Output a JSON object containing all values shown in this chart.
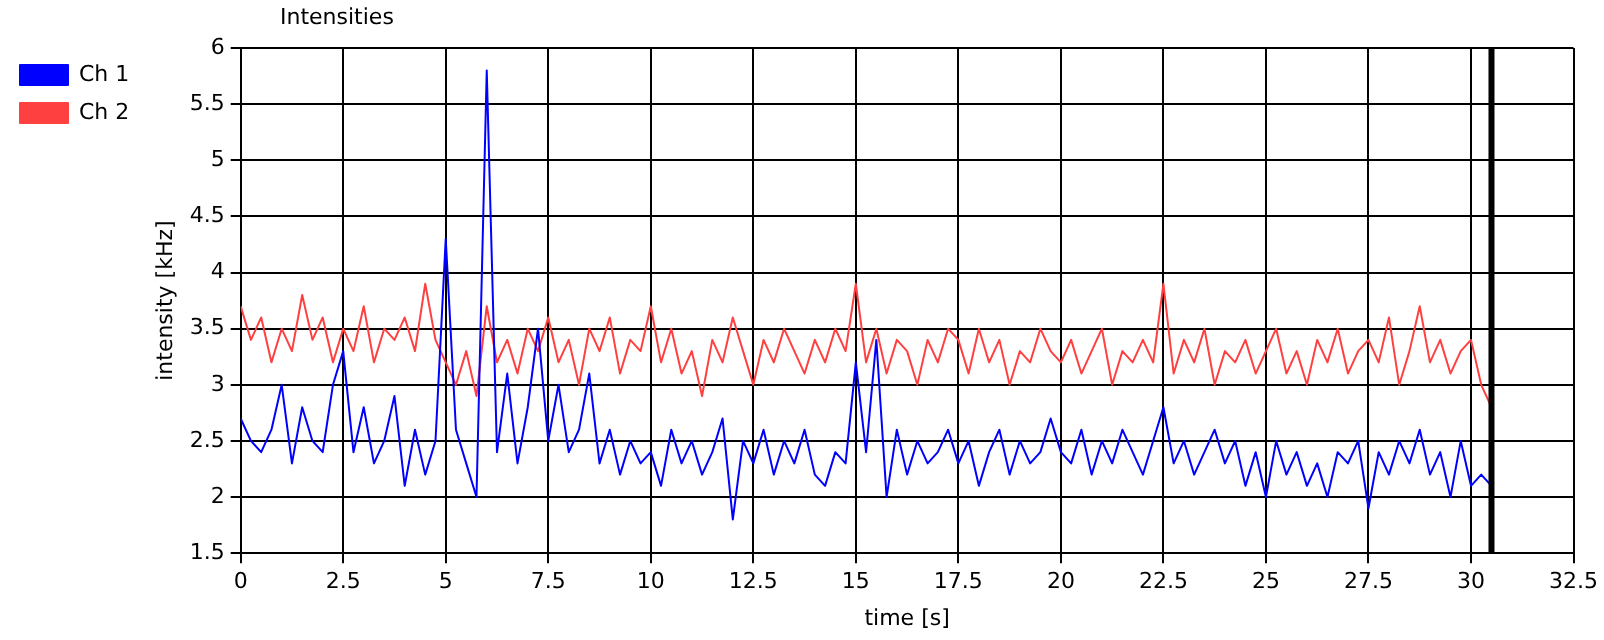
{
  "chart_data": {
    "type": "line",
    "title": "Intensities",
    "xlabel": "time [s]",
    "ylabel": "intensity [kHz]",
    "xlim": [
      0,
      32.5
    ],
    "xticks": [
      0,
      2.5,
      5,
      7.5,
      10,
      12.5,
      15,
      17.5,
      20,
      22.5,
      25,
      27.5,
      30,
      32.5
    ],
    "ylim": [
      1.5,
      6
    ],
    "yticks": [
      1.5,
      2,
      2.5,
      3,
      3.5,
      4,
      4.5,
      5,
      5.5,
      6
    ],
    "grid": true,
    "legend": "top left",
    "marker": "none",
    "line_style": "solid",
    "ref_lines": [
      {
        "axis": "x",
        "value": 30.5,
        "color": "#000000"
      }
    ],
    "x": [
      0,
      0.25,
      0.5,
      0.75,
      1,
      1.25,
      1.5,
      1.75,
      2,
      2.25,
      2.5,
      2.75,
      3,
      3.25,
      3.5,
      3.75,
      4,
      4.25,
      4.5,
      4.75,
      5,
      5.25,
      5.5,
      5.75,
      6,
      6.25,
      6.5,
      6.75,
      7,
      7.25,
      7.5,
      7.75,
      8,
      8.25,
      8.5,
      8.75,
      9,
      9.25,
      9.5,
      9.75,
      10,
      10.25,
      10.5,
      10.75,
      11,
      11.25,
      11.5,
      11.75,
      12,
      12.25,
      12.5,
      12.75,
      13,
      13.25,
      13.5,
      13.75,
      14,
      14.25,
      14.5,
      14.75,
      15,
      15.25,
      15.5,
      15.75,
      16,
      16.25,
      16.5,
      16.75,
      17,
      17.25,
      17.5,
      17.75,
      18,
      18.25,
      18.5,
      18.75,
      19,
      19.25,
      19.5,
      19.75,
      20,
      20.25,
      20.5,
      20.75,
      21,
      21.25,
      21.5,
      21.75,
      22,
      22.25,
      22.5,
      22.75,
      23,
      23.25,
      23.5,
      23.75,
      24,
      24.25,
      24.5,
      24.75,
      25,
      25.25,
      25.5,
      25.75,
      26,
      26.25,
      26.5,
      26.75,
      27,
      27.25,
      27.5,
      27.75,
      28,
      28.25,
      28.5,
      28.75,
      29,
      29.25,
      29.5,
      29.75,
      30,
      30.25,
      30.5
    ],
    "series": [
      {
        "name": "Ch 1",
        "color": "#0000ff",
        "values": [
          2.7,
          2.5,
          2.4,
          2.6,
          3.0,
          2.3,
          2.8,
          2.5,
          2.4,
          3.0,
          3.3,
          2.4,
          2.8,
          2.3,
          2.5,
          2.9,
          2.1,
          2.6,
          2.2,
          2.5,
          4.3,
          2.6,
          2.3,
          2.0,
          5.8,
          2.4,
          3.1,
          2.3,
          2.8,
          3.5,
          2.5,
          3.0,
          2.4,
          2.6,
          3.1,
          2.3,
          2.6,
          2.2,
          2.5,
          2.3,
          2.4,
          2.1,
          2.6,
          2.3,
          2.5,
          2.2,
          2.4,
          2.7,
          1.8,
          2.5,
          2.3,
          2.6,
          2.2,
          2.5,
          2.3,
          2.6,
          2.2,
          2.1,
          2.4,
          2.3,
          3.2,
          2.4,
          3.4,
          2.0,
          2.6,
          2.2,
          2.5,
          2.3,
          2.4,
          2.6,
          2.3,
          2.5,
          2.1,
          2.4,
          2.6,
          2.2,
          2.5,
          2.3,
          2.4,
          2.7,
          2.4,
          2.3,
          2.6,
          2.2,
          2.5,
          2.3,
          2.6,
          2.4,
          2.2,
          2.5,
          2.8,
          2.3,
          2.5,
          2.2,
          2.4,
          2.6,
          2.3,
          2.5,
          2.1,
          2.4,
          2.0,
          2.5,
          2.2,
          2.4,
          2.1,
          2.3,
          2.0,
          2.4,
          2.3,
          2.5,
          1.9,
          2.4,
          2.2,
          2.5,
          2.3,
          2.6,
          2.2,
          2.4,
          2.0,
          2.5,
          2.1,
          2.2,
          2.1
        ]
      },
      {
        "name": "Ch 2",
        "color": "#ff4040",
        "values": [
          3.7,
          3.4,
          3.6,
          3.2,
          3.5,
          3.3,
          3.8,
          3.4,
          3.6,
          3.2,
          3.5,
          3.3,
          3.7,
          3.2,
          3.5,
          3.4,
          3.6,
          3.3,
          3.9,
          3.4,
          3.2,
          3.0,
          3.3,
          2.9,
          3.7,
          3.2,
          3.4,
          3.1,
          3.5,
          3.3,
          3.6,
          3.2,
          3.4,
          3.0,
          3.5,
          3.3,
          3.6,
          3.1,
          3.4,
          3.3,
          3.7,
          3.2,
          3.5,
          3.1,
          3.3,
          2.9,
          3.4,
          3.2,
          3.6,
          3.3,
          3.0,
          3.4,
          3.2,
          3.5,
          3.3,
          3.1,
          3.4,
          3.2,
          3.5,
          3.3,
          3.9,
          3.2,
          3.5,
          3.1,
          3.4,
          3.3,
          3.0,
          3.4,
          3.2,
          3.5,
          3.4,
          3.1,
          3.5,
          3.2,
          3.4,
          3.0,
          3.3,
          3.2,
          3.5,
          3.3,
          3.2,
          3.4,
          3.1,
          3.3,
          3.5,
          3.0,
          3.3,
          3.2,
          3.4,
          3.2,
          3.9,
          3.1,
          3.4,
          3.2,
          3.5,
          3.0,
          3.3,
          3.2,
          3.4,
          3.1,
          3.3,
          3.5,
          3.1,
          3.3,
          3.0,
          3.4,
          3.2,
          3.5,
          3.1,
          3.3,
          3.4,
          3.2,
          3.6,
          3.0,
          3.3,
          3.7,
          3.2,
          3.4,
          3.1,
          3.3,
          3.4,
          3.0,
          2.8
        ]
      }
    ]
  }
}
